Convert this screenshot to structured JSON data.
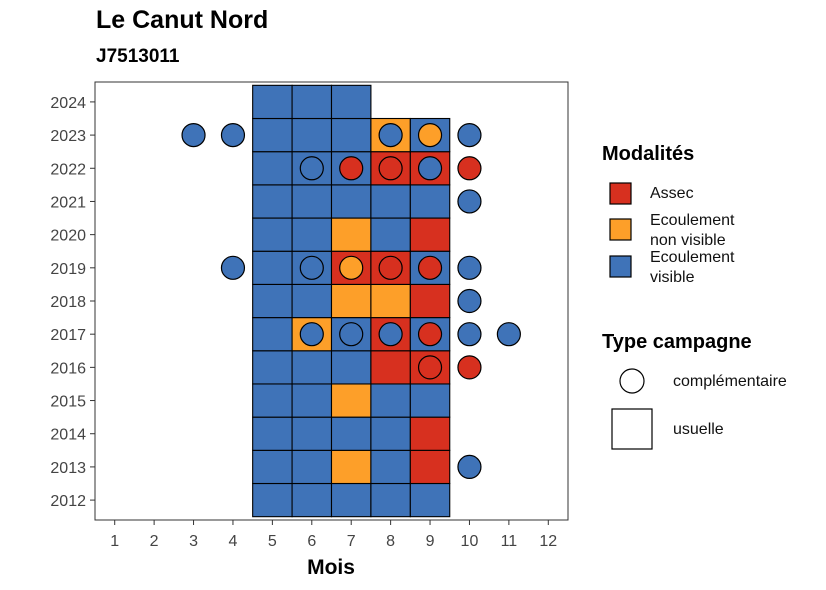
{
  "chart_data": {
    "type": "heatmap",
    "title": "Le Canut Nord",
    "subtitle": "J7513011",
    "xlabel": "Mois",
    "ylabel": "",
    "x_ticks": [
      1,
      2,
      3,
      4,
      5,
      6,
      7,
      8,
      9,
      10,
      11,
      12
    ],
    "y_ticks": [
      2012,
      2013,
      2014,
      2015,
      2016,
      2017,
      2018,
      2019,
      2020,
      2021,
      2022,
      2023,
      2024
    ],
    "xlim": [
      0.5,
      12.5
    ],
    "ylim": [
      2011.4,
      2024.6
    ],
    "colors": {
      "A": "#d7301f",
      "ENV": "#fd9f29",
      "EV": "#3f73b8"
    },
    "legend_modalites": {
      "title": "Modalités",
      "items": [
        {
          "key": "A",
          "label": "Assec"
        },
        {
          "key": "ENV",
          "label": "Ecoulement non visible"
        },
        {
          "key": "EV",
          "label": "Ecoulement visible"
        }
      ]
    },
    "legend_type": {
      "title": "Type campagne",
      "items": [
        {
          "key": "circle",
          "label": "complémentaire"
        },
        {
          "key": "square",
          "label": "usuelle"
        }
      ]
    },
    "usuelle": [
      {
        "year": 2012,
        "month": 5,
        "m": "EV"
      },
      {
        "year": 2012,
        "month": 6,
        "m": "EV"
      },
      {
        "year": 2012,
        "month": 7,
        "m": "EV"
      },
      {
        "year": 2012,
        "month": 8,
        "m": "EV"
      },
      {
        "year": 2012,
        "month": 9,
        "m": "EV"
      },
      {
        "year": 2013,
        "month": 5,
        "m": "EV"
      },
      {
        "year": 2013,
        "month": 6,
        "m": "EV"
      },
      {
        "year": 2013,
        "month": 7,
        "m": "ENV"
      },
      {
        "year": 2013,
        "month": 8,
        "m": "EV"
      },
      {
        "year": 2013,
        "month": 9,
        "m": "A"
      },
      {
        "year": 2014,
        "month": 5,
        "m": "EV"
      },
      {
        "year": 2014,
        "month": 6,
        "m": "EV"
      },
      {
        "year": 2014,
        "month": 7,
        "m": "EV"
      },
      {
        "year": 2014,
        "month": 8,
        "m": "EV"
      },
      {
        "year": 2014,
        "month": 9,
        "m": "A"
      },
      {
        "year": 2015,
        "month": 5,
        "m": "EV"
      },
      {
        "year": 2015,
        "month": 6,
        "m": "EV"
      },
      {
        "year": 2015,
        "month": 7,
        "m": "ENV"
      },
      {
        "year": 2015,
        "month": 8,
        "m": "EV"
      },
      {
        "year": 2015,
        "month": 9,
        "m": "EV"
      },
      {
        "year": 2016,
        "month": 5,
        "m": "EV"
      },
      {
        "year": 2016,
        "month": 6,
        "m": "EV"
      },
      {
        "year": 2016,
        "month": 7,
        "m": "EV"
      },
      {
        "year": 2016,
        "month": 8,
        "m": "A"
      },
      {
        "year": 2016,
        "month": 9,
        "m": "A"
      },
      {
        "year": 2017,
        "month": 5,
        "m": "EV"
      },
      {
        "year": 2017,
        "month": 6,
        "m": "ENV"
      },
      {
        "year": 2017,
        "month": 7,
        "m": "EV"
      },
      {
        "year": 2017,
        "month": 8,
        "m": "A"
      },
      {
        "year": 2017,
        "month": 9,
        "m": "EV"
      },
      {
        "year": 2018,
        "month": 5,
        "m": "EV"
      },
      {
        "year": 2018,
        "month": 6,
        "m": "EV"
      },
      {
        "year": 2018,
        "month": 7,
        "m": "ENV"
      },
      {
        "year": 2018,
        "month": 8,
        "m": "ENV"
      },
      {
        "year": 2018,
        "month": 9,
        "m": "A"
      },
      {
        "year": 2019,
        "month": 5,
        "m": "EV"
      },
      {
        "year": 2019,
        "month": 6,
        "m": "EV"
      },
      {
        "year": 2019,
        "month": 7,
        "m": "A"
      },
      {
        "year": 2019,
        "month": 8,
        "m": "A"
      },
      {
        "year": 2019,
        "month": 9,
        "m": "EV"
      },
      {
        "year": 2020,
        "month": 5,
        "m": "EV"
      },
      {
        "year": 2020,
        "month": 6,
        "m": "EV"
      },
      {
        "year": 2020,
        "month": 7,
        "m": "ENV"
      },
      {
        "year": 2020,
        "month": 8,
        "m": "EV"
      },
      {
        "year": 2020,
        "month": 9,
        "m": "A"
      },
      {
        "year": 2021,
        "month": 5,
        "m": "EV"
      },
      {
        "year": 2021,
        "month": 6,
        "m": "EV"
      },
      {
        "year": 2021,
        "month": 7,
        "m": "EV"
      },
      {
        "year": 2021,
        "month": 8,
        "m": "EV"
      },
      {
        "year": 2021,
        "month": 9,
        "m": "EV"
      },
      {
        "year": 2022,
        "month": 5,
        "m": "EV"
      },
      {
        "year": 2022,
        "month": 6,
        "m": "EV"
      },
      {
        "year": 2022,
        "month": 7,
        "m": "EV"
      },
      {
        "year": 2022,
        "month": 8,
        "m": "A"
      },
      {
        "year": 2022,
        "month": 9,
        "m": "A"
      },
      {
        "year": 2023,
        "month": 5,
        "m": "EV"
      },
      {
        "year": 2023,
        "month": 6,
        "m": "EV"
      },
      {
        "year": 2023,
        "month": 7,
        "m": "EV"
      },
      {
        "year": 2023,
        "month": 8,
        "m": "ENV"
      },
      {
        "year": 2023,
        "month": 9,
        "m": "EV"
      },
      {
        "year": 2024,
        "month": 5,
        "m": "EV"
      },
      {
        "year": 2024,
        "month": 6,
        "m": "EV"
      },
      {
        "year": 2024,
        "month": 7,
        "m": "EV"
      }
    ],
    "complementaire": [
      {
        "year": 2013,
        "month": 10,
        "m": "EV"
      },
      {
        "year": 2016,
        "month": 9,
        "m": "A"
      },
      {
        "year": 2016,
        "month": 10,
        "m": "A"
      },
      {
        "year": 2017,
        "month": 6,
        "m": "EV"
      },
      {
        "year": 2017,
        "month": 7,
        "m": "EV"
      },
      {
        "year": 2017,
        "month": 8,
        "m": "EV"
      },
      {
        "year": 2017,
        "month": 9,
        "m": "A"
      },
      {
        "year": 2017,
        "month": 10,
        "m": "EV"
      },
      {
        "year": 2017,
        "month": 11,
        "m": "EV"
      },
      {
        "year": 2018,
        "month": 10,
        "m": "EV"
      },
      {
        "year": 2019,
        "month": 4,
        "m": "EV"
      },
      {
        "year": 2019,
        "month": 6,
        "m": "EV"
      },
      {
        "year": 2019,
        "month": 7,
        "m": "ENV"
      },
      {
        "year": 2019,
        "month": 8,
        "m": "A"
      },
      {
        "year": 2019,
        "month": 9,
        "m": "A"
      },
      {
        "year": 2019,
        "month": 10,
        "m": "EV"
      },
      {
        "year": 2021,
        "month": 10,
        "m": "EV"
      },
      {
        "year": 2022,
        "month": 6,
        "m": "EV"
      },
      {
        "year": 2022,
        "month": 7,
        "m": "A"
      },
      {
        "year": 2022,
        "month": 8,
        "m": "A"
      },
      {
        "year": 2022,
        "month": 9,
        "m": "EV"
      },
      {
        "year": 2022,
        "month": 10,
        "m": "A"
      },
      {
        "year": 2023,
        "month": 3,
        "m": "EV"
      },
      {
        "year": 2023,
        "month": 4,
        "m": "EV"
      },
      {
        "year": 2023,
        "month": 8,
        "m": "EV"
      },
      {
        "year": 2023,
        "month": 9,
        "m": "ENV"
      },
      {
        "year": 2023,
        "month": 10,
        "m": "EV"
      }
    ]
  }
}
